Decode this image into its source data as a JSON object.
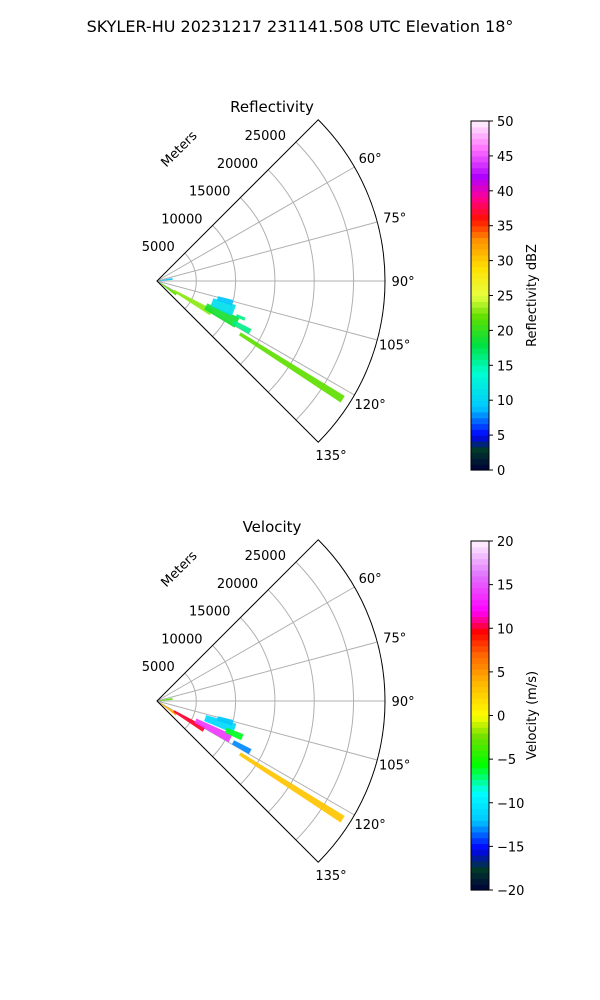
{
  "figure": {
    "suptitle": "SKYLER-HU  20231217  231141.508 UTC Elevation 18°"
  },
  "chart_data": [
    {
      "type": "heatmap",
      "projection": "polar-sector",
      "title": "Reflectivity",
      "range_label": "Meters",
      "range_ticks": [
        5000,
        10000,
        15000,
        20000,
        25000
      ],
      "range_tick_labels": [
        "5000",
        "10000",
        "15000",
        "20000",
        "25000"
      ],
      "range_max": 29000,
      "azimuth_range_deg": [
        45,
        135
      ],
      "azimuth_ticks": [
        60,
        75,
        90,
        105,
        120,
        135
      ],
      "azimuth_tick_labels": [
        "60°",
        "75°",
        "90°",
        "105°",
        "120°",
        "135°"
      ],
      "grid": true,
      "colorbar": {
        "label": "Reflectivity dBZ",
        "min": 0,
        "max": 50,
        "ticks": [
          0,
          5,
          10,
          15,
          20,
          25,
          30,
          35,
          40,
          45,
          50
        ],
        "tick_labels": [
          "0",
          "5",
          "10",
          "15",
          "20",
          "25",
          "30",
          "35",
          "40",
          "45",
          "50"
        ],
        "colormap": "NWSRef"
      },
      "echoes": [
        {
          "az0": 79,
          "az1": 86,
          "r0": 300,
          "r1": 2000,
          "value": 9
        },
        {
          "az0": 121,
          "az1": 128,
          "r0": 400,
          "r1": 3000,
          "value": 22
        },
        {
          "az0": 117,
          "az1": 123,
          "r0": 2500,
          "r1": 8000,
          "value": 23
        },
        {
          "az0": 114,
          "az1": 121,
          "r0": 7000,
          "r1": 11500,
          "value": 19
        },
        {
          "az0": 107,
          "az1": 115,
          "r0": 7500,
          "r1": 10500,
          "value": 11
        },
        {
          "az0": 104,
          "az1": 108,
          "r0": 8000,
          "r1": 10000,
          "value": 9
        },
        {
          "az0": 117,
          "az1": 120,
          "r0": 11000,
          "r1": 13500,
          "value": 16
        },
        {
          "az0": 121.5,
          "az1": 123.5,
          "r0": 12500,
          "r1": 28000,
          "value": 22
        },
        {
          "az0": 112.5,
          "az1": 114.5,
          "r0": 11000,
          "r1": 12200,
          "value": 16
        }
      ]
    },
    {
      "type": "heatmap",
      "projection": "polar-sector",
      "title": "Velocity",
      "range_label": "Meters",
      "range_ticks": [
        5000,
        10000,
        15000,
        20000,
        25000
      ],
      "range_tick_labels": [
        "5000",
        "10000",
        "15000",
        "20000",
        "25000"
      ],
      "range_max": 29000,
      "azimuth_range_deg": [
        45,
        135
      ],
      "azimuth_ticks": [
        60,
        75,
        90,
        105,
        120,
        135
      ],
      "azimuth_tick_labels": [
        "60°",
        "75°",
        "90°",
        "105°",
        "120°",
        "135°"
      ],
      "grid": true,
      "colorbar": {
        "label": "Velocity (m/s)",
        "min": -20,
        "max": 20,
        "ticks": [
          -20,
          -15,
          -10,
          -5,
          0,
          5,
          10,
          15,
          20
        ],
        "tick_labels": [
          "−20",
          "−15",
          "−10",
          "−5",
          "0",
          "5",
          "10",
          "15",
          "20"
        ],
        "colormap": "NWSVel"
      },
      "echoes": [
        {
          "az0": 79,
          "az1": 86,
          "r0": 300,
          "r1": 2000,
          "value": -3
        },
        {
          "az0": 121,
          "az1": 128,
          "r0": 400,
          "r1": 3000,
          "value": 4
        },
        {
          "az0": 118,
          "az1": 124,
          "r0": 2500,
          "r1": 7000,
          "value": 10
        },
        {
          "az0": 114,
          "az1": 120,
          "r0": 5500,
          "r1": 10500,
          "value": 14
        },
        {
          "az0": 106,
          "az1": 113,
          "r0": 6500,
          "r1": 10500,
          "value": -11
        },
        {
          "az0": 104,
          "az1": 108,
          "r0": 8000,
          "r1": 10000,
          "value": -12
        },
        {
          "az0": 111,
          "az1": 115,
          "r0": 9500,
          "r1": 11800,
          "value": -6
        },
        {
          "az0": 117,
          "az1": 120,
          "r0": 11000,
          "r1": 13500,
          "value": -13
        },
        {
          "az0": 121.5,
          "az1": 123.5,
          "r0": 12500,
          "r1": 28000,
          "value": 3
        }
      ]
    }
  ]
}
